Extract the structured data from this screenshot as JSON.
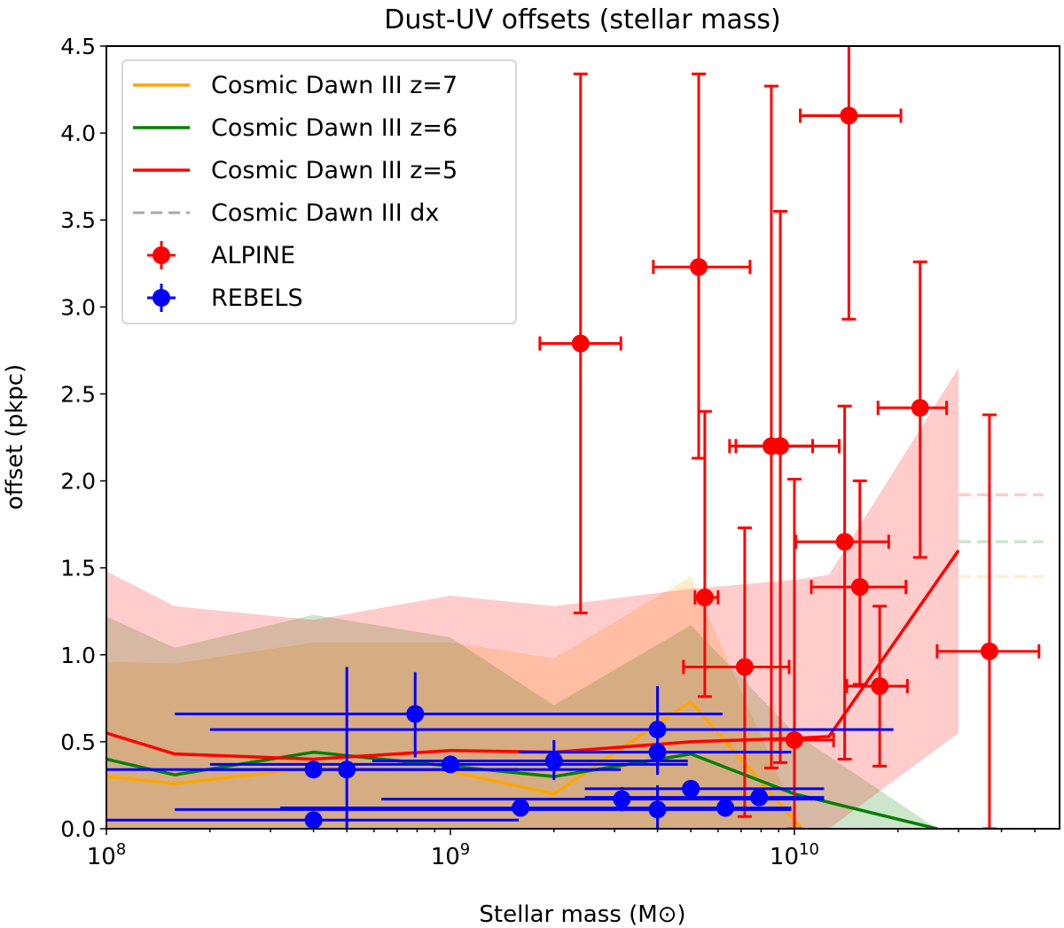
{
  "chart_data": {
    "type": "scatter",
    "title": "Dust-UV offsets (stellar mass)",
    "xlabel": "Stellar mass (M⊙)",
    "ylabel": "offset (pkpc)",
    "xscale": "log",
    "xlim": [
      100000000.0,
      59000000000.0
    ],
    "ylim": [
      0,
      4.5
    ],
    "grid": false,
    "legend_placement": "top-left",
    "x_ticks": [
      {
        "value": 100000000.0,
        "base": "10",
        "exp": "8"
      },
      {
        "value": 1000000000.0,
        "base": "10",
        "exp": "9"
      },
      {
        "value": 10000000000.0,
        "base": "10",
        "exp": "10"
      }
    ],
    "y_ticks": [
      "0.0",
      "0.5",
      "1.0",
      "1.5",
      "2.0",
      "2.5",
      "3.0",
      "3.5",
      "4.0",
      "4.5"
    ],
    "models": [
      {
        "name": "Cosmic Dawn III z=7",
        "color": "#ffa500",
        "x": [
          100000000.0,
          158000000.0,
          400000000.0,
          1000000000.0,
          2000000000.0,
          5000000000.0,
          10500000000.0
        ],
        "y": [
          0.3,
          0.26,
          0.35,
          0.33,
          0.2,
          0.73,
          0.0
        ],
        "upper": [
          0.96,
          0.95,
          1.07,
          1.07,
          0.98,
          1.45,
          0.0
        ],
        "lower": [
          0,
          0,
          0,
          0,
          0,
          0,
          0
        ],
        "dx": 1.45
      },
      {
        "name": "Cosmic Dawn III z=6",
        "color": "#008000",
        "x": [
          100000000.0,
          158000000.0,
          400000000.0,
          1000000000.0,
          2000000000.0,
          5000000000.0,
          10000000000.0,
          26000000000.0
        ],
        "y": [
          0.4,
          0.31,
          0.44,
          0.36,
          0.3,
          0.43,
          0.2,
          0.0
        ],
        "upper": [
          1.22,
          1.04,
          1.23,
          1.1,
          0.71,
          1.17,
          0.55,
          0.0
        ],
        "lower": [
          0,
          0,
          0,
          0,
          0,
          0,
          0,
          0
        ],
        "dx": 1.65
      },
      {
        "name": "Cosmic Dawn III z=5",
        "color": "#ff0000",
        "x": [
          100000000.0,
          158000000.0,
          400000000.0,
          1000000000.0,
          2000000000.0,
          5000000000.0,
          10000000000.0,
          12600000000.0,
          30000000000.0
        ],
        "y": [
          0.55,
          0.43,
          0.4,
          0.45,
          0.44,
          0.5,
          0.52,
          0.53,
          1.6
        ],
        "upper": [
          1.48,
          1.28,
          1.2,
          1.34,
          1.28,
          1.38,
          1.43,
          1.46,
          2.65
        ],
        "lower": [
          0,
          0,
          0,
          0,
          0,
          0,
          0,
          0,
          0.55
        ],
        "dx": 1.92
      }
    ],
    "dx_label": "Cosmic Dawn III dx",
    "dx_xrange": [
      30000000000.0,
      53000000000.0
    ],
    "series": [
      {
        "name": "ALPINE",
        "color": "#ff0000",
        "points": [
          {
            "x": 2390000000.0,
            "y": 2.79,
            "xlo": 1820000000.0,
            "xhi": 3130000000.0,
            "ylo": 1.24,
            "yhi": 4.34
          },
          {
            "x": 5270000000.0,
            "y": 3.23,
            "xlo": 3890000000.0,
            "xhi": 7430000000.0,
            "ylo": 2.13,
            "yhi": 4.34
          },
          {
            "x": 5490000000.0,
            "y": 1.33,
            "xlo": 5140000000.0,
            "xhi": 6000000000.0,
            "ylo": 0.76,
            "yhi": 2.4
          },
          {
            "x": 7170000000.0,
            "y": 0.93,
            "xlo": 4760000000.0,
            "xhi": 9650000000.0,
            "ylo": 0.07,
            "yhi": 1.73
          },
          {
            "x": 8570000000.0,
            "y": 2.2,
            "xlo": 6480000000.0,
            "xhi": 11300000000.0,
            "ylo": 0.35,
            "yhi": 4.27
          },
          {
            "x": 9100000000.0,
            "y": 2.2,
            "xlo": 6760000000.0,
            "xhi": 13500000000.0,
            "ylo": 0.38,
            "yhi": 3.55
          },
          {
            "x": 10000000000.0,
            "y": 0.51,
            "xlo": 8570000000.0,
            "xhi": 13000000000.0,
            "ylo": 0.0,
            "yhi": 2.01
          },
          {
            "x": 14400000000.0,
            "y": 4.1,
            "xlo": 10400000000.0,
            "xhi": 20400000000.0,
            "ylo": 2.93,
            "yhi": 4.6
          },
          {
            "x": 14000000000.0,
            "y": 1.65,
            "xlo": 10100000000.0,
            "xhi": 18800000000.0,
            "ylo": 0.4,
            "yhi": 2.43
          },
          {
            "x": 15500000000.0,
            "y": 1.39,
            "xlo": 11200000000.0,
            "xhi": 21100000000.0,
            "ylo": 0.83,
            "yhi": 2.0
          },
          {
            "x": 17700000000.0,
            "y": 0.82,
            "xlo": 14200000000.0,
            "xhi": 21300000000.0,
            "ylo": 0.36,
            "yhi": 1.28
          },
          {
            "x": 23200000000.0,
            "y": 2.42,
            "xlo": 17500000000.0,
            "xhi": 27700000000.0,
            "ylo": 1.56,
            "yhi": 3.26
          },
          {
            "x": 36900000000.0,
            "y": 1.02,
            "xlo": 26000000000.0,
            "xhi": 51400000000.0,
            "ylo": 0.0,
            "yhi": 2.38
          }
        ]
      },
      {
        "name": "REBELS",
        "color": "#0000ff",
        "points": [
          {
            "x": 400000000.0,
            "y": 0.34,
            "xlo": 100000000.0,
            "xhi": 1580000000.0,
            "ylo": 0.31,
            "yhi": 0.37
          },
          {
            "x": 400000000.0,
            "y": 0.05,
            "xlo": 100000000.0,
            "xhi": 1580000000.0,
            "ylo": 0.0,
            "yhi": 0.08
          },
          {
            "x": 500000000.0,
            "y": 0.34,
            "xlo": 200000000.0,
            "xhi": 3130000000.0,
            "ylo": 0.0,
            "yhi": 0.93
          },
          {
            "x": 790000000.0,
            "y": 0.66,
            "xlo": 158000000.0,
            "xhi": 6180000000.0,
            "ylo": 0.41,
            "yhi": 0.9
          },
          {
            "x": 1000000000.0,
            "y": 0.37,
            "xlo": 200000000.0,
            "xhi": 4900000000.0,
            "ylo": 0.34,
            "yhi": 0.4
          },
          {
            "x": 1600000000.0,
            "y": 0.12,
            "xlo": 320000000.0,
            "xhi": 6300000000.0,
            "ylo": 0.09,
            "yhi": 0.15
          },
          {
            "x": 2000000000.0,
            "y": 0.39,
            "xlo": 593000000.0,
            "xhi": 4900000000.0,
            "ylo": 0.28,
            "yhi": 0.51
          },
          {
            "x": 3150000000.0,
            "y": 0.17,
            "xlo": 630000000.0,
            "xhi": 12200000000.0,
            "ylo": 0.1,
            "yhi": 0.24
          },
          {
            "x": 4000000000.0,
            "y": 0.57,
            "xlo": 200000000.0,
            "xhi": 19400000000.0,
            "ylo": 0.31,
            "yhi": 0.82
          },
          {
            "x": 4000000000.0,
            "y": 0.44,
            "xlo": 1580000000.0,
            "xhi": 9800000000.0,
            "ylo": 0.38,
            "yhi": 0.5
          },
          {
            "x": 4000000000.0,
            "y": 0.11,
            "xlo": 158000000.0,
            "xhi": 9800000000.0,
            "ylo": 0.0,
            "yhi": 0.25
          },
          {
            "x": 5000000000.0,
            "y": 0.23,
            "xlo": 2460000000.0,
            "xhi": 12200000000.0,
            "ylo": 0.19,
            "yhi": 0.27
          },
          {
            "x": 6300000000.0,
            "y": 0.12,
            "xlo": 630000000.0,
            "xhi": 9800000000.0,
            "ylo": 0.09,
            "yhi": 0.15
          },
          {
            "x": 7900000000.0,
            "y": 0.18,
            "xlo": 2460000000.0,
            "xhi": 12200000000.0,
            "ylo": 0.14,
            "yhi": 0.22
          }
        ]
      }
    ]
  }
}
